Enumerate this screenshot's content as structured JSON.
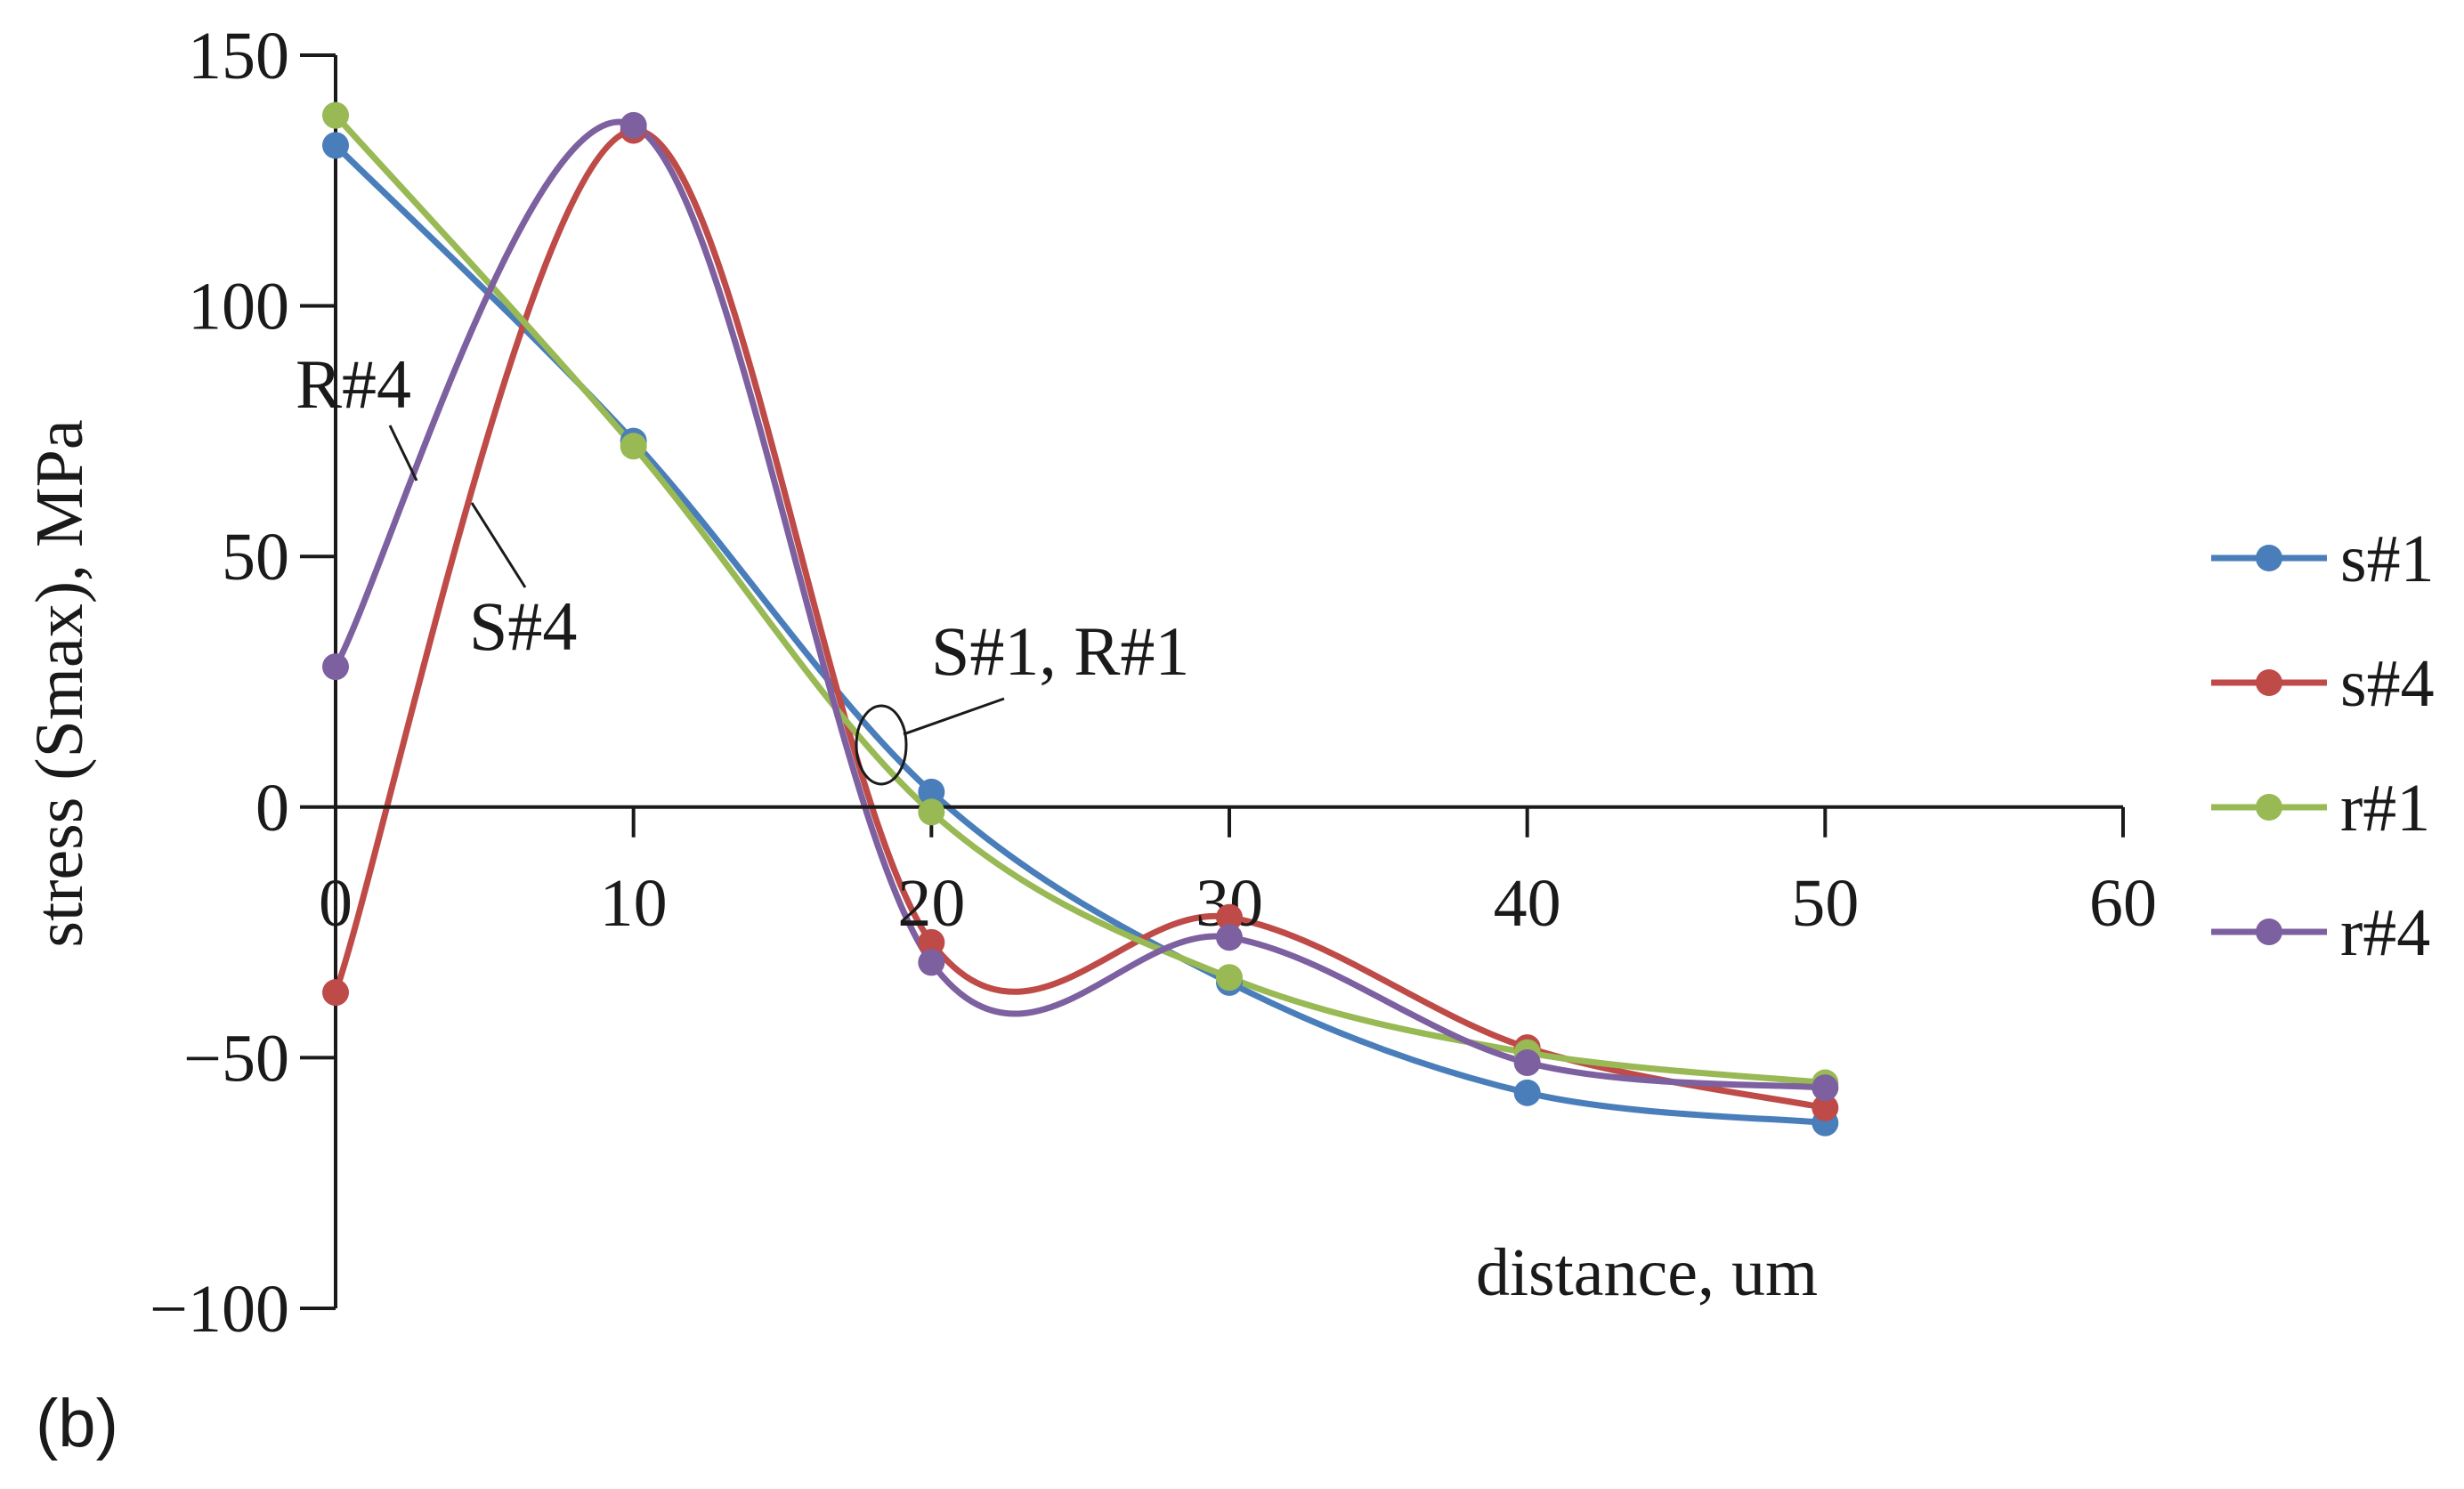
{
  "chart_data": {
    "type": "line",
    "title": "",
    "panel_label": "(b)",
    "xlabel": "distance, um",
    "ylabel": "stress (Smax), MPa",
    "xlim": [
      0,
      60
    ],
    "ylim": [
      -100,
      150
    ],
    "xticks": [
      0,
      10,
      20,
      30,
      40,
      50,
      60
    ],
    "yticks": [
      -100,
      -50,
      0,
      50,
      100,
      150
    ],
    "xtick_labels": [
      "0",
      "10",
      "20",
      "30",
      "40",
      "50",
      "60"
    ],
    "ytick_labels": [
      "−100",
      "−50",
      "0",
      "50",
      "100",
      "150"
    ],
    "grid": false,
    "smooth": true,
    "legend_position": "right",
    "x": [
      0,
      10,
      20,
      30,
      40,
      50
    ],
    "series": [
      {
        "name": "s#1",
        "color": "#4a7ebb",
        "values": [
          132,
          73,
          3,
          -35,
          -57,
          -63
        ]
      },
      {
        "name": "s#4",
        "color": "#be4b48",
        "values": [
          -37,
          135,
          -27,
          -22,
          -48,
          -60
        ]
      },
      {
        "name": "r#1",
        "color": "#98b954",
        "values": [
          138,
          72,
          -1,
          -34,
          -49,
          -55
        ]
      },
      {
        "name": "r#4",
        "color": "#7d60a0",
        "values": [
          28,
          136,
          -31,
          -26,
          -51,
          -56
        ]
      }
    ],
    "annotations": [
      {
        "text": "R#4",
        "x": 5.5,
        "y": 40
      },
      {
        "text": "S#4",
        "x": 4.5,
        "y": 35
      },
      {
        "text": "S#1, R#1",
        "x": 18,
        "y": 14
      }
    ]
  }
}
